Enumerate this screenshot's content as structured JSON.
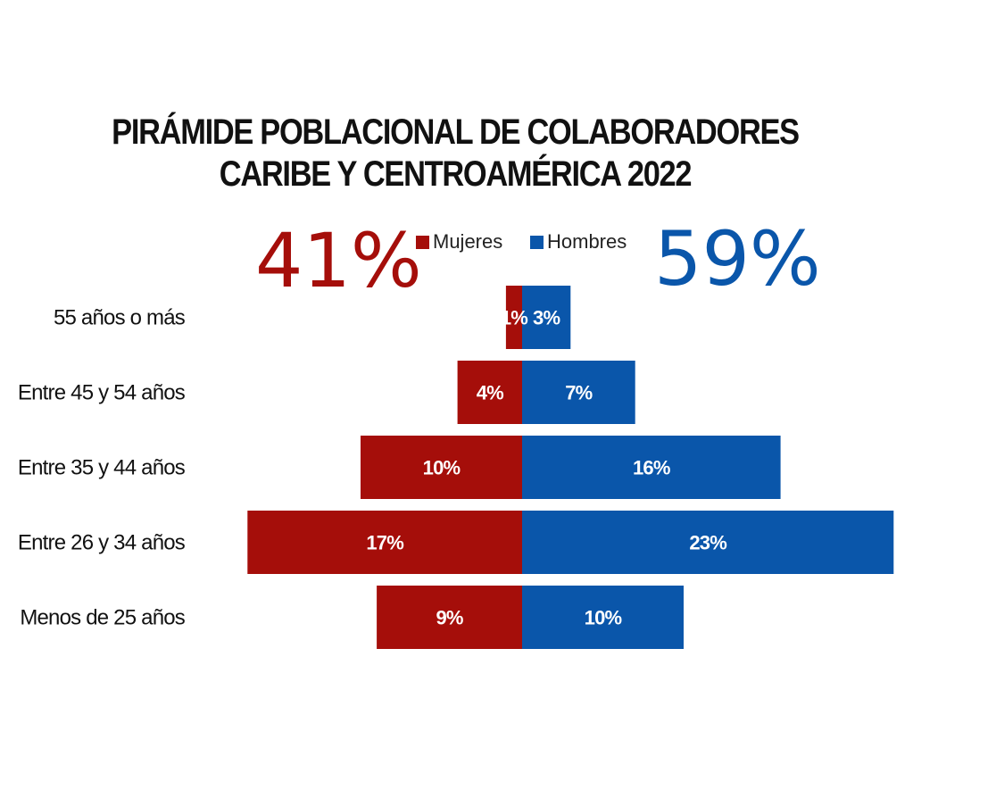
{
  "chart_data": {
    "type": "bar",
    "title_line1": "PIRÁMIDE POBLACIONAL DE COLABORADORES",
    "title_line2": "CARIBE Y CENTROAMÉRICA 2022",
    "categories": [
      "55 años o más",
      "Entre 45 y 54 años",
      "Entre 35 y 44 años",
      "Entre 26 y 34 años",
      "Menos de 25 años"
    ],
    "series": [
      {
        "name": "Mujeres",
        "values": [
          1,
          4,
          10,
          17,
          9
        ],
        "labels": [
          "1%",
          "4%",
          "10%",
          "17%",
          "9%"
        ],
        "color": "#a50e0a",
        "total": "41%"
      },
      {
        "name": "Hombres",
        "values": [
          3,
          7,
          16,
          23,
          10
        ],
        "labels": [
          "3%",
          "7%",
          "16%",
          "23%",
          "10%"
        ],
        "color": "#0a56aa",
        "total": "59%"
      }
    ],
    "legend_position": "top-center",
    "grid": false
  }
}
